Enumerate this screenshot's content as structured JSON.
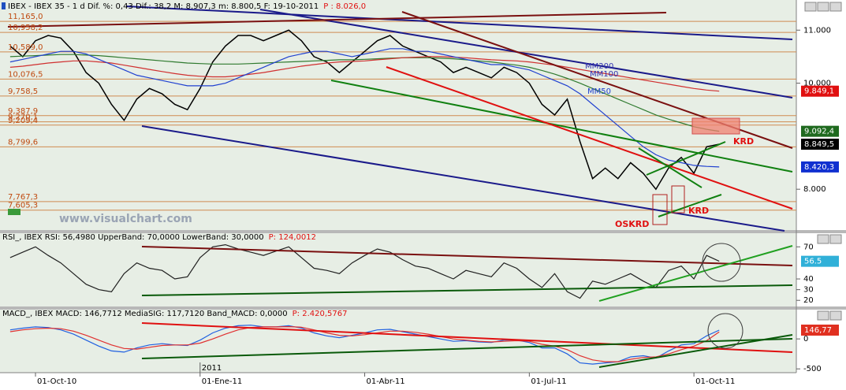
{
  "chart_data": [
    {
      "type": "line",
      "title": "IBEX - IBEX 35 - 1 d Dif. %: 0,43 Dif.: 38,2 M: 8.907,3 m: 8.800,5 F: 19-10-2011",
      "subtitle": "P : 8.026,0",
      "ylim": [
        7230,
        11390
      ],
      "yticks": [
        {
          "value": 11000,
          "label": "11.000"
        },
        {
          "value": 10000,
          "label": "10.000"
        },
        {
          "value": 8000,
          "label": "8.000"
        }
      ],
      "levels": [
        {
          "value": 11165,
          "label": "11,165,0"
        },
        {
          "value": 10958.2,
          "label": "10,958,2"
        },
        {
          "value": 10589,
          "label": "10,589,0"
        },
        {
          "value": 10076.5,
          "label": "10,076,5"
        },
        {
          "value": 9758.5,
          "label": "9,758,5"
        },
        {
          "value": 9387.9,
          "label": "9,387,9"
        },
        {
          "value": 9270.1,
          "label": "9,270,1"
        },
        {
          "value": 9209.4,
          "label": "9,209,4"
        },
        {
          "value": 8799.6,
          "label": "8,799,6"
        },
        {
          "value": 7767.3,
          "label": "7,767,3"
        },
        {
          "value": 7605.3,
          "label": "7,605,3"
        }
      ],
      "series": [
        {
          "color": "#000000",
          "values": [
            10700,
            10500,
            10800,
            10900,
            10850,
            10600,
            10200,
            10000,
            9600,
            9300,
            9700,
            9900,
            9800,
            9600,
            9500,
            9900,
            10400,
            10700,
            10900,
            10900,
            10800,
            10900,
            11000,
            10800,
            10500,
            10400,
            10200,
            10400,
            10600,
            10800,
            10900,
            10700,
            10600,
            10500,
            10400,
            10200,
            10300,
            10200,
            10100,
            10300,
            10200,
            10000,
            9600,
            9400,
            9700,
            8900,
            8200,
            8400,
            8200,
            8500,
            8300,
            8000,
            8400,
            8600,
            8300,
            8800,
            8849.5
          ]
        },
        {
          "name": "MM200",
          "color": "#2f7a2f",
          "values": [
            10500,
            10510,
            10520,
            10530,
            10540,
            10540,
            10530,
            10520,
            10500,
            10480,
            10460,
            10440,
            10420,
            10400,
            10380,
            10370,
            10360,
            10360,
            10360,
            10370,
            10380,
            10390,
            10400,
            10410,
            10420,
            10430,
            10440,
            10440,
            10450,
            10460,
            10470,
            10480,
            10480,
            10480,
            10470,
            10460,
            10440,
            10420,
            10400,
            10370,
            10340,
            10300,
            10240,
            10170,
            10090,
            10000,
            9900,
            9800,
            9700,
            9600,
            9500,
            9400,
            9320,
            9250,
            9180,
            9130,
            9092.4
          ]
        },
        {
          "name": "MM100",
          "color": "#d03030",
          "values": [
            10300,
            10320,
            10350,
            10380,
            10400,
            10420,
            10420,
            10400,
            10380,
            10340,
            10300,
            10260,
            10220,
            10180,
            10150,
            10130,
            10120,
            10120,
            10140,
            10170,
            10200,
            10240,
            10280,
            10320,
            10350,
            10380,
            10400,
            10410,
            10420,
            10440,
            10460,
            10480,
            10490,
            10500,
            10500,
            10490,
            10480,
            10460,
            10440,
            10430,
            10420,
            10400,
            10370,
            10340,
            10300,
            10260,
            10220,
            10180,
            10140,
            10100,
            10060,
            10020,
            9980,
            9940,
            9900,
            9870,
            9849.1
          ]
        },
        {
          "name": "MM50",
          "color": "#2040d0",
          "values": [
            10400,
            10450,
            10500,
            10550,
            10600,
            10600,
            10550,
            10450,
            10350,
            10250,
            10150,
            10100,
            10050,
            10000,
            9950,
            9950,
            9950,
            10000,
            10100,
            10200,
            10300,
            10400,
            10500,
            10550,
            10600,
            10600,
            10550,
            10500,
            10550,
            10600,
            10650,
            10650,
            10600,
            10600,
            10550,
            10500,
            10450,
            10400,
            10350,
            10350,
            10300,
            10250,
            10150,
            10050,
            9950,
            9800,
            9600,
            9400,
            9200,
            9000,
            8800,
            8650,
            8550,
            8500,
            8450,
            8430,
            8420.3
          ]
        }
      ],
      "markers": [
        {
          "value": 9849.1,
          "label": "9.849,1",
          "color": "#e01010"
        },
        {
          "value": 9092.4,
          "label": "9.092,4",
          "color": "#1f6a1f"
        },
        {
          "value": 8849.5,
          "label": "8.849,5",
          "color": "#000000"
        },
        {
          "value": 8420.3,
          "label": "8.420,3",
          "color": "#1030d0"
        }
      ],
      "annotations": [
        "KRD",
        "KRD",
        "OSKRD",
        "www.visualchart.com"
      ]
    },
    {
      "type": "line",
      "title": "RSI_, IBEX RSI: 56,4980 UpperBand: 70,0000 LowerBand: 30,0000",
      "subtitle": "P: 124,0012",
      "ylim": [
        15,
        82
      ],
      "yticks": [
        70,
        40,
        30,
        20
      ],
      "series": [
        {
          "color": "#202020",
          "values": [
            60,
            65,
            70,
            62,
            55,
            45,
            35,
            30,
            28,
            45,
            55,
            50,
            48,
            40,
            42,
            60,
            70,
            72,
            68,
            65,
            62,
            66,
            70,
            60,
            50,
            48,
            45,
            55,
            62,
            68,
            65,
            58,
            52,
            50,
            45,
            40,
            48,
            45,
            42,
            55,
            50,
            40,
            32,
            45,
            28,
            22,
            38,
            35,
            40,
            45,
            38,
            32,
            48,
            52,
            40,
            62,
            56.498
          ]
        }
      ],
      "markers": [
        {
          "value": 56.498,
          "label": "56.5",
          "color": "#30b0d8"
        }
      ]
    },
    {
      "type": "line",
      "title": "MACD_, IBEX MACD: 146,7712 MediaSIG: 117,7120 Band_MACD: 0,0000",
      "subtitle": "P: 2.420,5767",
      "ylim": [
        -550,
        370
      ],
      "yticks": [
        0,
        -500
      ],
      "categories": [
        null,
        null,
        "01-Oct-10",
        null,
        null,
        null,
        null,
        null,
        null,
        null,
        null,
        null,
        null,
        null,
        null,
        "01-Ene-11",
        null,
        null,
        null,
        null,
        null,
        null,
        null,
        null,
        null,
        null,
        null,
        null,
        "01-Abr-11",
        null,
        null,
        null,
        null,
        null,
        null,
        null,
        null,
        null,
        null,
        null,
        null,
        "01-Jul-11",
        null,
        null,
        null,
        null,
        null,
        null,
        null,
        null,
        null,
        null,
        null,
        null,
        "01-Oct-11",
        null,
        null
      ],
      "series": [
        {
          "color": "#2060e0",
          "values": [
            150,
            180,
            200,
            190,
            150,
            80,
            -20,
            -120,
            -200,
            -220,
            -150,
            -100,
            -80,
            -100,
            -110,
            -20,
            100,
            180,
            220,
            230,
            200,
            200,
            220,
            180,
            100,
            50,
            20,
            60,
            100,
            150,
            160,
            120,
            80,
            40,
            0,
            -40,
            -30,
            -50,
            -60,
            -20,
            -20,
            -60,
            -150,
            -150,
            -250,
            -400,
            -420,
            -400,
            -380,
            -300,
            -280,
            -320,
            -200,
            -100,
            -80,
            50,
            146.7712
          ]
        },
        {
          "color": "#e03030",
          "values": [
            120,
            150,
            170,
            180,
            170,
            130,
            60,
            -20,
            -100,
            -160,
            -170,
            -140,
            -110,
            -100,
            -100,
            -70,
            0,
            80,
            150,
            190,
            200,
            200,
            205,
            195,
            150,
            100,
            60,
            50,
            70,
            100,
            130,
            130,
            110,
            80,
            40,
            0,
            -20,
            -40,
            -50,
            -40,
            -30,
            -40,
            -90,
            -120,
            -180,
            -280,
            -350,
            -380,
            -380,
            -340,
            -310,
            -300,
            -250,
            -180,
            -120,
            -30,
            117.712
          ]
        }
      ],
      "markers": [
        {
          "value": 146.7712,
          "label": "146,77",
          "color": "#e03020"
        }
      ],
      "annotations": [
        "2011"
      ]
    }
  ]
}
